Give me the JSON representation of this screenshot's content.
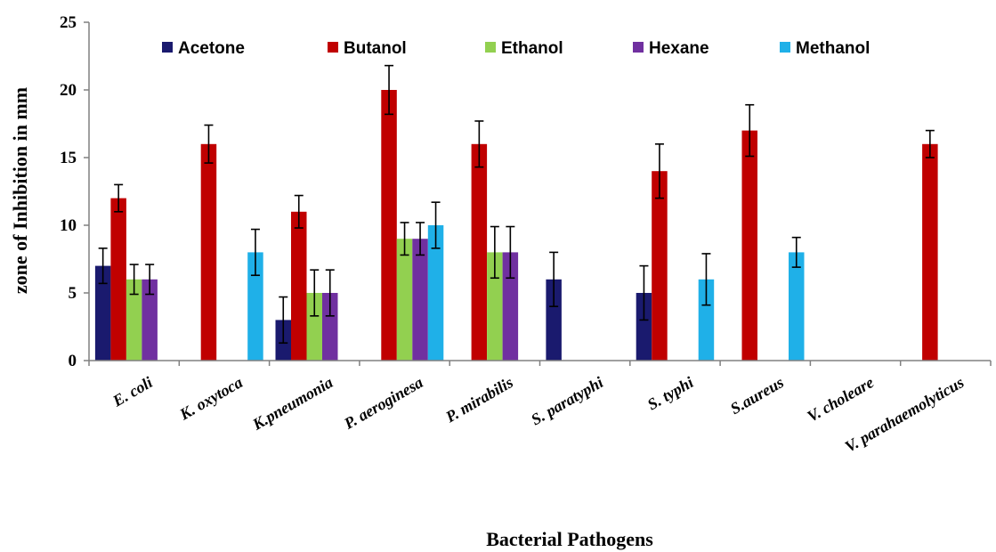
{
  "chart_data": {
    "type": "bar",
    "xlabel": "Bacterial Pathogens",
    "ylabel": "zone of Inhibition in mm",
    "ylim": [
      0,
      25
    ],
    "yticks": [
      0,
      5,
      10,
      15,
      20,
      25
    ],
    "grid": false,
    "legend_position": "top",
    "categories": [
      "E. coli",
      "K. oxytoca",
      "K.pneumonia",
      "P. aeroginesa",
      "P. mirabilis",
      "S. paratyphi",
      "S. typhi",
      "S.aureus",
      "V. choleare",
      "V. parahaemolyticus"
    ],
    "series": [
      {
        "name": "Acetone",
        "color": "#1a1a6e",
        "values": [
          7,
          0,
          3,
          0,
          0,
          6,
          5,
          0,
          0,
          0
        ],
        "errors": [
          1.3,
          0,
          1.7,
          0,
          0,
          2.0,
          2.0,
          0,
          0,
          0
        ]
      },
      {
        "name": "Butanol",
        "color": "#c00000",
        "values": [
          12,
          16,
          11,
          20,
          16,
          0,
          14,
          17,
          0,
          16
        ],
        "errors": [
          1.0,
          1.4,
          1.2,
          1.8,
          1.7,
          0,
          2.0,
          1.9,
          0,
          1.0
        ]
      },
      {
        "name": "Ethanol",
        "color": "#92d050",
        "values": [
          6,
          0,
          5,
          9,
          8,
          0,
          0,
          0,
          0,
          0
        ],
        "errors": [
          1.1,
          0,
          1.7,
          1.2,
          1.9,
          0,
          0,
          0,
          0,
          0
        ]
      },
      {
        "name": "Hexane",
        "color": "#7030a0",
        "values": [
          6,
          0,
          5,
          9,
          8,
          0,
          0,
          0,
          0,
          0
        ],
        "errors": [
          1.1,
          0,
          1.7,
          1.2,
          1.9,
          0,
          0,
          0,
          0,
          0
        ]
      },
      {
        "name": "Methanol",
        "color": "#1fb0e8",
        "values": [
          0,
          8,
          0,
          10,
          0,
          0,
          6,
          8,
          0,
          0
        ],
        "errors": [
          0,
          1.7,
          0,
          1.7,
          0,
          0,
          1.9,
          1.1,
          0,
          0
        ]
      }
    ]
  }
}
